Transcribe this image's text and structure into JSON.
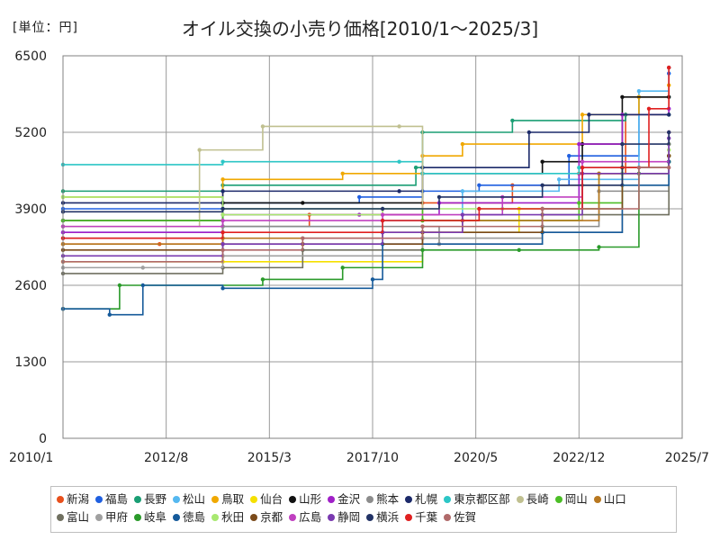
{
  "chart_data": {
    "type": "line",
    "title": "オイル交換の小売り価格[2010/1～2025/3]",
    "unit_label": "[単位：円]",
    "x_ticks": [
      "2010/1",
      "2012/8",
      "2015/3",
      "2017/10",
      "2020/5",
      "2022/12",
      "2025/7"
    ],
    "y_ticks": [
      0,
      1300,
      2600,
      3900,
      5200,
      6500
    ],
    "ylim": [
      0,
      6500
    ],
    "xlim": [
      "2010/1",
      "2025/7"
    ],
    "grid": true,
    "legend_position": "bottom",
    "series": [
      {
        "name": "新潟",
        "color": "#e8501c",
        "points": [
          [
            "2010/1",
            3300
          ],
          [
            "2012/6",
            3300
          ],
          [
            "2014/1",
            3600
          ],
          [
            "2016/3",
            3800
          ],
          [
            "2019/1",
            4000
          ],
          [
            "2021/4",
            4300
          ],
          [
            "2022/12",
            4500
          ],
          [
            "2024/2",
            5500
          ],
          [
            "2025/3",
            6300
          ]
        ]
      },
      {
        "name": "福島",
        "color": "#1f5fe0",
        "points": [
          [
            "2010/1",
            3900
          ],
          [
            "2014/1",
            4000
          ],
          [
            "2017/6",
            4100
          ],
          [
            "2019/1",
            4200
          ],
          [
            "2020/6",
            4300
          ],
          [
            "2022/9",
            4800
          ],
          [
            "2024/6",
            5800
          ],
          [
            "2025/3",
            6200
          ]
        ]
      },
      {
        "name": "長野",
        "color": "#1a9e74",
        "points": [
          [
            "2010/1",
            4200
          ],
          [
            "2014/1",
            4300
          ],
          [
            "2018/11",
            4600
          ],
          [
            "2019/1",
            5200
          ],
          [
            "2021/4",
            5400
          ],
          [
            "2024/2",
            5500
          ],
          [
            "2025/3",
            5500
          ]
        ]
      },
      {
        "name": "松山",
        "color": "#55b8f0",
        "points": [
          [
            "2010/1",
            3500
          ],
          [
            "2014/1",
            3600
          ],
          [
            "2018/1",
            3700
          ],
          [
            "2020/1",
            4200
          ],
          [
            "2022/6",
            4400
          ],
          [
            "2024/6",
            5900
          ],
          [
            "2025/3",
            6300
          ]
        ]
      },
      {
        "name": "鳥取",
        "color": "#f0a800",
        "points": [
          [
            "2010/1",
            4100
          ],
          [
            "2014/1",
            4400
          ],
          [
            "2017/1",
            4500
          ],
          [
            "2019/1",
            4800
          ],
          [
            "2020/1",
            5000
          ],
          [
            "2023/1",
            5500
          ],
          [
            "2024/6",
            5800
          ],
          [
            "2025/3",
            6000
          ]
        ]
      },
      {
        "name": "仙台",
        "color": "#f5e000",
        "points": [
          [
            "2010/1",
            3000
          ],
          [
            "2014/1",
            3000
          ],
          [
            "2019/1",
            3500
          ],
          [
            "2021/6",
            3900
          ],
          [
            "2023/6",
            4500
          ],
          [
            "2025/3",
            4700
          ]
        ]
      },
      {
        "name": "山形",
        "color": "#111111",
        "points": [
          [
            "2010/1",
            3700
          ],
          [
            "2014/1",
            4000
          ],
          [
            "2016/1",
            4000
          ],
          [
            "2019/1",
            4500
          ],
          [
            "2022/1",
            4700
          ],
          [
            "2023/1",
            5000
          ],
          [
            "2024/1",
            5800
          ],
          [
            "2025/3",
            5800
          ]
        ]
      },
      {
        "name": "金沢",
        "color": "#a020c8",
        "points": [
          [
            "2010/1",
            3500
          ],
          [
            "2014/1",
            3800
          ],
          [
            "2017/6",
            3800
          ],
          [
            "2019/6",
            4000
          ],
          [
            "2022/12",
            5000
          ],
          [
            "2024/1",
            5500
          ],
          [
            "2025/3",
            5600
          ]
        ]
      },
      {
        "name": "熊本",
        "color": "#8c8c8c",
        "points": [
          [
            "2010/1",
            3400
          ],
          [
            "2014/1",
            3600
          ],
          [
            "2019/6",
            3300
          ],
          [
            "2022/1",
            3600
          ],
          [
            "2023/6",
            4200
          ],
          [
            "2025/3",
            4800
          ]
        ]
      },
      {
        "name": "札幌",
        "color": "#1c2a6a",
        "points": [
          [
            "2010/1",
            4000
          ],
          [
            "2014/1",
            4200
          ],
          [
            "2018/6",
            4200
          ],
          [
            "2019/1",
            4600
          ],
          [
            "2021/9",
            5200
          ],
          [
            "2023/3",
            5500
          ],
          [
            "2025/3",
            5500
          ]
        ]
      },
      {
        "name": "東京都区部",
        "color": "#2cc6c6",
        "points": [
          [
            "2010/1",
            4650
          ],
          [
            "2014/1",
            4700
          ],
          [
            "2018/6",
            4700
          ],
          [
            "2019/1",
            4500
          ],
          [
            "2022/12",
            4600
          ],
          [
            "2025/3",
            5000
          ]
        ]
      },
      {
        "name": "長崎",
        "color": "#c0c090",
        "points": [
          [
            "2010/1",
            3600
          ],
          [
            "2013/6",
            4900
          ],
          [
            "2015/1",
            5300
          ],
          [
            "2018/6",
            5300
          ],
          [
            "2019/1",
            3700
          ],
          [
            "2023/1",
            4300
          ],
          [
            "2025/3",
            5200
          ]
        ]
      },
      {
        "name": "岡山",
        "color": "#4cbe26",
        "points": [
          [
            "2010/1",
            3700
          ],
          [
            "2014/1",
            3900
          ],
          [
            "2019/1",
            3700
          ],
          [
            "2022/12",
            4000
          ],
          [
            "2024/1",
            4600
          ],
          [
            "2025/3",
            4800
          ]
        ]
      },
      {
        "name": "山口",
        "color": "#b87820",
        "points": [
          [
            "2010/1",
            3300
          ],
          [
            "2014/1",
            3400
          ],
          [
            "2018/1",
            3500
          ],
          [
            "2020/1",
            3700
          ],
          [
            "2023/6",
            4500
          ],
          [
            "2025/3",
            4800
          ]
        ]
      },
      {
        "name": "富山",
        "color": "#707060",
        "points": [
          [
            "2010/1",
            2800
          ],
          [
            "2014/1",
            2900
          ],
          [
            "2016/1",
            3200
          ],
          [
            "2019/1",
            3400
          ],
          [
            "2022/1",
            3800
          ],
          [
            "2025/3",
            5000
          ]
        ]
      },
      {
        "name": "甲府",
        "color": "#a0a0a0",
        "points": [
          [
            "2010/1",
            2900
          ],
          [
            "2012/1",
            2900
          ],
          [
            "2014/1",
            3100
          ],
          [
            "2019/1",
            3400
          ],
          [
            "2022/1",
            3500
          ],
          [
            "2024/1",
            4500
          ],
          [
            "2025/3",
            4700
          ]
        ]
      },
      {
        "name": "岐阜",
        "color": "#2a9a2a",
        "points": [
          [
            "2010/1",
            2200
          ],
          [
            "2011/6",
            2600
          ],
          [
            "2015/1",
            2700
          ],
          [
            "2017/1",
            2900
          ],
          [
            "2019/1",
            3200
          ],
          [
            "2021/6",
            3200
          ],
          [
            "2023/6",
            3250
          ],
          [
            "2024/6",
            4500
          ],
          [
            "2025/3",
            4700
          ]
        ]
      },
      {
        "name": "徳島",
        "color": "#155a9a",
        "points": [
          [
            "2010/1",
            2200
          ],
          [
            "2011/3",
            2100
          ],
          [
            "2012/1",
            2600
          ],
          [
            "2014/1",
            2550
          ],
          [
            "2017/10",
            2700
          ],
          [
            "2018/1",
            3300
          ],
          [
            "2022/1",
            3500
          ],
          [
            "2024/1",
            4300
          ],
          [
            "2025/3",
            4700
          ]
        ]
      },
      {
        "name": "秋田",
        "color": "#a8e870",
        "points": [
          [
            "2010/1",
            4100
          ],
          [
            "2014/1",
            3800
          ],
          [
            "2018/1",
            3900
          ],
          [
            "2021/1",
            3900
          ],
          [
            "2024/1",
            4500
          ],
          [
            "2025/3",
            4900
          ]
        ]
      },
      {
        "name": "京都",
        "color": "#7a4a1a",
        "points": [
          [
            "2010/1",
            3200
          ],
          [
            "2014/1",
            3300
          ],
          [
            "2016/1",
            3300
          ],
          [
            "2019/1",
            3500
          ],
          [
            "2022/1",
            3900
          ],
          [
            "2024/1",
            4600
          ],
          [
            "2025/3",
            4800
          ]
        ]
      },
      {
        "name": "広島",
        "color": "#c040c0",
        "points": [
          [
            "2010/1",
            3600
          ],
          [
            "2014/1",
            3700
          ],
          [
            "2018/1",
            3800
          ],
          [
            "2021/1",
            4100
          ],
          [
            "2023/1",
            4700
          ],
          [
            "2025/3",
            5200
          ]
        ]
      },
      {
        "name": "静岡",
        "color": "#7a3ab0",
        "points": [
          [
            "2010/1",
            3100
          ],
          [
            "2014/1",
            3300
          ],
          [
            "2018/1",
            3500
          ],
          [
            "2020/1",
            3800
          ],
          [
            "2023/1",
            4500
          ],
          [
            "2025/3",
            5100
          ]
        ]
      },
      {
        "name": "横浜",
        "color": "#223366",
        "points": [
          [
            "2010/1",
            3850
          ],
          [
            "2014/1",
            3900
          ],
          [
            "2018/1",
            3900
          ],
          [
            "2019/6",
            4100
          ],
          [
            "2022/1",
            4300
          ],
          [
            "2024/1",
            5000
          ],
          [
            "2025/3",
            5200
          ]
        ]
      },
      {
        "name": "千葉",
        "color": "#e02020",
        "points": [
          [
            "2010/1",
            3400
          ],
          [
            "2014/1",
            3500
          ],
          [
            "2018/1",
            3700
          ],
          [
            "2020/6",
            3900
          ],
          [
            "2023/1",
            4600
          ],
          [
            "2024/9",
            5600
          ],
          [
            "2025/3",
            6300
          ]
        ]
      },
      {
        "name": "佐賀",
        "color": "#b06a6a",
        "points": [
          [
            "2010/1",
            3000
          ],
          [
            "2014/1",
            3200
          ],
          [
            "2016/1",
            3400
          ],
          [
            "2019/1",
            3600
          ],
          [
            "2022/1",
            3900
          ],
          [
            "2024/6",
            4600
          ],
          [
            "2025/3",
            4600
          ]
        ]
      }
    ]
  }
}
